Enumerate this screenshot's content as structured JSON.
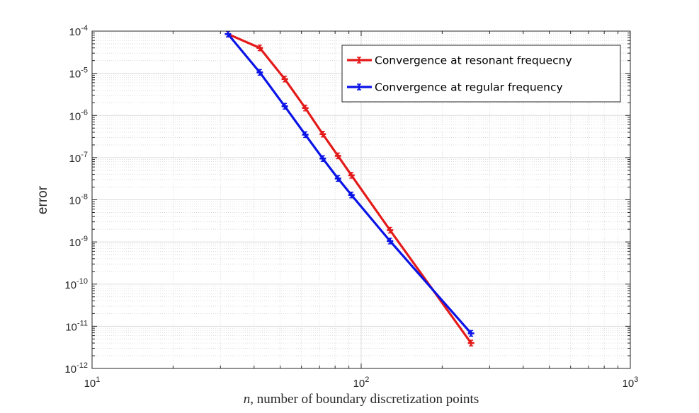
{
  "chart_data": {
    "type": "line",
    "x_scale": "log",
    "y_scale": "log",
    "xlim": [
      10,
      1000
    ],
    "ylim": [
      1e-12,
      0.0001
    ],
    "grid": true,
    "minor_grid": true,
    "legend_position": "top-right",
    "xlabel_var": "n",
    "xlabel_text": ", number of boundary discretization points",
    "ylabel": "error",
    "x_ticks": [
      {
        "base": "10",
        "exp": "1",
        "value": 10
      },
      {
        "base": "10",
        "exp": "2",
        "value": 100
      },
      {
        "base": "10",
        "exp": "3",
        "value": 1000
      }
    ],
    "y_ticks": [
      {
        "base": "10",
        "exp": "-4",
        "value": 0.0001
      },
      {
        "base": "10",
        "exp": "-5",
        "value": 1e-05
      },
      {
        "base": "10",
        "exp": "-6",
        "value": 1e-06
      },
      {
        "base": "10",
        "exp": "-7",
        "value": 1e-07
      },
      {
        "base": "10",
        "exp": "-8",
        "value": 1e-08
      },
      {
        "base": "10",
        "exp": "-9",
        "value": 1e-09
      },
      {
        "base": "10",
        "exp": "-10",
        "value": 1e-10
      },
      {
        "base": "10",
        "exp": "-11",
        "value": 1e-11
      },
      {
        "base": "10",
        "exp": "-12",
        "value": 1e-12
      }
    ],
    "series": [
      {
        "name": "Convergence at resonant frequecny",
        "color": "#e41a1a",
        "x": [
          32,
          42,
          52,
          62,
          72,
          82,
          92,
          128,
          256
        ],
        "y": [
          8.5e-05,
          4e-05,
          7.3e-06,
          1.5e-06,
          3.6e-07,
          1.1e-07,
          3.8e-08,
          1.9e-09,
          4e-12
        ]
      },
      {
        "name": "Convergence at regular frequency",
        "color": "#0a14e6",
        "x": [
          32,
          42,
          52,
          62,
          72,
          82,
          92,
          128,
          256
        ],
        "y": [
          8.5e-05,
          1.05e-05,
          1.65e-06,
          3.5e-07,
          9.5e-08,
          3.2e-08,
          1.3e-08,
          1.05e-09,
          6.8e-12
        ]
      }
    ]
  }
}
